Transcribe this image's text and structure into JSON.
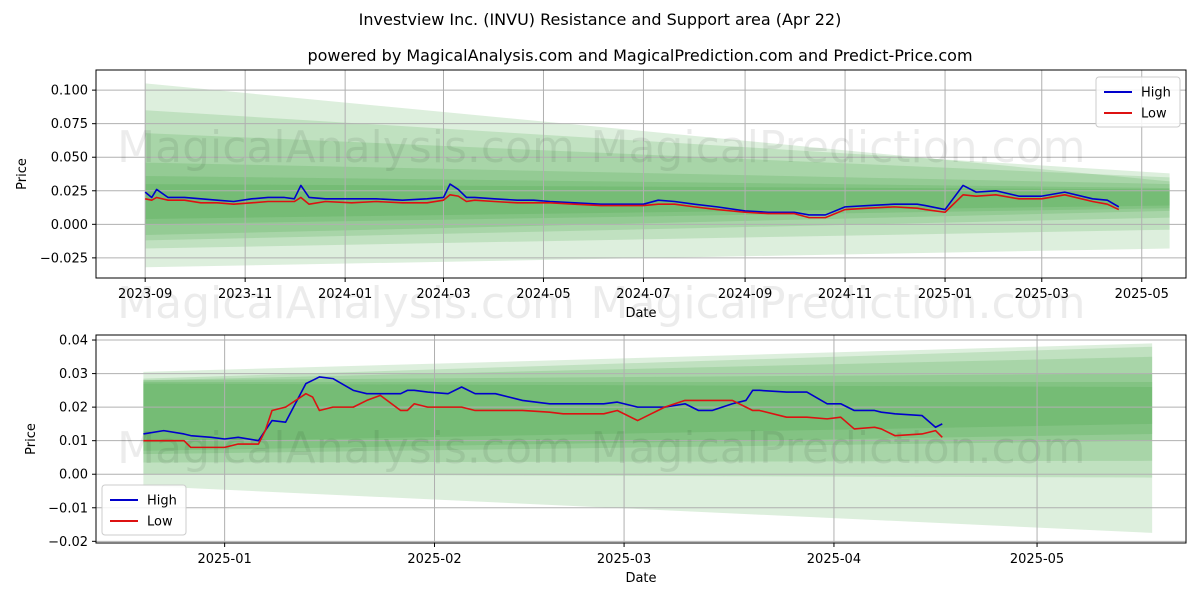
{
  "title": "Investview Inc. (INVU) Resistance and Support area (Apr 22)",
  "subtitle": "powered by MagicalAnalysis.com and MagicalPrediction.com and Predict-Price.com",
  "watermarks": [
    "MagicalAnalysis.com",
    "MagicalPrediction.com"
  ],
  "colors": {
    "high": "#0000cc",
    "low": "#dd1111",
    "band": "#2e9e2e",
    "grid": "#b0b0b0"
  },
  "chart_data": [
    {
      "type": "line",
      "xlabel": "Date",
      "ylabel": "Price",
      "xlim": [
        "2023-08-02",
        "2025-05-28"
      ],
      "ylim": [
        -0.04,
        0.115
      ],
      "grid": true,
      "legend_position": "top-right",
      "x_ticks": [
        "2023-09",
        "2023-11",
        "2024-01",
        "2024-03",
        "2024-05",
        "2024-07",
        "2024-09",
        "2024-11",
        "2025-01",
        "2025-03",
        "2025-05"
      ],
      "y_ticks": [
        "−0.025",
        "0.000",
        "0.025",
        "0.050",
        "0.075",
        "0.100"
      ],
      "series": [
        {
          "name": "High",
          "color": "#0000cc",
          "x": [
            "2023-09-01",
            "2023-09-05",
            "2023-09-08",
            "2023-09-15",
            "2023-09-25",
            "2023-10-05",
            "2023-10-15",
            "2023-10-25",
            "2023-11-05",
            "2023-11-15",
            "2023-11-25",
            "2023-12-01",
            "2023-12-05",
            "2023-12-10",
            "2023-12-20",
            "2024-01-05",
            "2024-01-20",
            "2024-02-05",
            "2024-02-20",
            "2024-03-01",
            "2024-03-05",
            "2024-03-10",
            "2024-03-15",
            "2024-03-20",
            "2024-04-01",
            "2024-04-15",
            "2024-04-25",
            "2024-05-05",
            "2024-05-20",
            "2024-06-05",
            "2024-06-20",
            "2024-07-01",
            "2024-07-10",
            "2024-07-20",
            "2024-08-01",
            "2024-08-15",
            "2024-09-01",
            "2024-09-15",
            "2024-10-01",
            "2024-10-10",
            "2024-10-20",
            "2024-11-01",
            "2024-11-15",
            "2024-12-01",
            "2024-12-15",
            "2024-12-20",
            "2025-01-01",
            "2025-01-12",
            "2025-01-20",
            "2025-02-01",
            "2025-02-15",
            "2025-03-01",
            "2025-03-15",
            "2025-04-01",
            "2025-04-10",
            "2025-04-17"
          ],
          "values": [
            0.024,
            0.02,
            0.026,
            0.02,
            0.02,
            0.019,
            0.018,
            0.017,
            0.019,
            0.02,
            0.02,
            0.019,
            0.029,
            0.02,
            0.019,
            0.019,
            0.019,
            0.018,
            0.019,
            0.02,
            0.03,
            0.026,
            0.02,
            0.02,
            0.019,
            0.018,
            0.018,
            0.017,
            0.016,
            0.015,
            0.015,
            0.015,
            0.018,
            0.017,
            0.015,
            0.013,
            0.01,
            0.009,
            0.009,
            0.007,
            0.007,
            0.013,
            0.014,
            0.015,
            0.015,
            0.014,
            0.011,
            0.029,
            0.024,
            0.025,
            0.021,
            0.021,
            0.024,
            0.019,
            0.018,
            0.013
          ]
        },
        {
          "name": "Low",
          "color": "#dd1111",
          "x": [
            "2023-09-01",
            "2023-09-05",
            "2023-09-08",
            "2023-09-15",
            "2023-09-25",
            "2023-10-05",
            "2023-10-15",
            "2023-10-25",
            "2023-11-05",
            "2023-11-15",
            "2023-11-25",
            "2023-12-01",
            "2023-12-05",
            "2023-12-10",
            "2023-12-20",
            "2024-01-05",
            "2024-01-20",
            "2024-02-05",
            "2024-02-20",
            "2024-03-01",
            "2024-03-05",
            "2024-03-10",
            "2024-03-15",
            "2024-03-20",
            "2024-04-01",
            "2024-04-15",
            "2024-04-25",
            "2024-05-05",
            "2024-05-20",
            "2024-06-05",
            "2024-06-20",
            "2024-07-01",
            "2024-07-10",
            "2024-07-20",
            "2024-08-01",
            "2024-08-15",
            "2024-09-01",
            "2024-09-15",
            "2024-10-01",
            "2024-10-10",
            "2024-10-20",
            "2024-11-01",
            "2024-11-15",
            "2024-12-01",
            "2024-12-15",
            "2024-12-20",
            "2025-01-01",
            "2025-01-12",
            "2025-01-20",
            "2025-02-01",
            "2025-02-15",
            "2025-03-01",
            "2025-03-15",
            "2025-04-01",
            "2025-04-10",
            "2025-04-17"
          ],
          "values": [
            0.019,
            0.018,
            0.02,
            0.018,
            0.018,
            0.016,
            0.016,
            0.015,
            0.016,
            0.017,
            0.017,
            0.017,
            0.02,
            0.015,
            0.017,
            0.016,
            0.017,
            0.016,
            0.016,
            0.018,
            0.022,
            0.021,
            0.017,
            0.018,
            0.017,
            0.016,
            0.016,
            0.016,
            0.015,
            0.014,
            0.014,
            0.014,
            0.015,
            0.015,
            0.013,
            0.011,
            0.009,
            0.008,
            0.008,
            0.005,
            0.005,
            0.011,
            0.012,
            0.013,
            0.012,
            0.011,
            0.009,
            0.022,
            0.021,
            0.022,
            0.019,
            0.019,
            0.022,
            0.017,
            0.015,
            0.011
          ]
        }
      ],
      "bands": [
        {
          "x": [
            "2023-09-01",
            "2025-05-18"
          ],
          "upper": [
            0.105,
            0.032
          ],
          "lower": [
            -0.032,
            -0.018
          ]
        },
        {
          "x": [
            "2023-09-01",
            "2025-05-18"
          ],
          "upper": [
            0.085,
            0.038
          ],
          "lower": [
            -0.018,
            -0.004
          ]
        },
        {
          "x": [
            "2023-09-01",
            "2025-05-18"
          ],
          "upper": [
            0.068,
            0.035
          ],
          "lower": [
            -0.012,
            0.005
          ]
        },
        {
          "x": [
            "2023-09-01",
            "2025-05-18"
          ],
          "upper": [
            0.046,
            0.03
          ],
          "lower": [
            -0.008,
            0.01
          ]
        },
        {
          "x": [
            "2023-09-01",
            "2025-05-18"
          ],
          "upper": [
            0.036,
            0.027
          ],
          "lower": [
            0.0,
            0.012
          ]
        },
        {
          "x": [
            "2023-09-01",
            "2025-05-18"
          ],
          "upper": [
            0.03,
            0.026
          ],
          "lower": [
            0.004,
            0.014
          ]
        }
      ]
    },
    {
      "type": "line",
      "xlabel": "Date",
      "ylabel": "Price",
      "xlim": [
        "2024-12-13",
        "2025-05-23"
      ],
      "ylim": [
        -0.0205,
        0.0415
      ],
      "grid": true,
      "legend_position": "bottom-left",
      "x_ticks": [
        "2025-01",
        "2025-02",
        "2025-03",
        "2025-04",
        "2025-05"
      ],
      "y_ticks": [
        "−0.02",
        "−0.01",
        "0.00",
        "0.01",
        "0.02",
        "0.03",
        "0.04"
      ],
      "series": [
        {
          "name": "High",
          "color": "#0000cc",
          "x": [
            "2024-12-20",
            "2024-12-23",
            "2024-12-26",
            "2024-12-27",
            "2024-12-30",
            "2025-01-01",
            "2025-01-03",
            "2025-01-06",
            "2025-01-07",
            "2025-01-08",
            "2025-01-10",
            "2025-01-13",
            "2025-01-14",
            "2025-01-15",
            "2025-01-17",
            "2025-01-20",
            "2025-01-22",
            "2025-01-24",
            "2025-01-27",
            "2025-01-28",
            "2025-01-29",
            "2025-01-31",
            "2025-02-03",
            "2025-02-05",
            "2025-02-07",
            "2025-02-10",
            "2025-02-14",
            "2025-02-18",
            "2025-02-20",
            "2025-02-24",
            "2025-02-26",
            "2025-02-28",
            "2025-03-03",
            "2025-03-05",
            "2025-03-06",
            "2025-03-07",
            "2025-03-10",
            "2025-03-12",
            "2025-03-14",
            "2025-03-17",
            "2025-03-19",
            "2025-03-20",
            "2025-03-21",
            "2025-03-25",
            "2025-03-26",
            "2025-03-28",
            "2025-03-31",
            "2025-04-02",
            "2025-04-04",
            "2025-04-07",
            "2025-04-08",
            "2025-04-10",
            "2025-04-14",
            "2025-04-16",
            "2025-04-17"
          ],
          "values": [
            0.012,
            0.013,
            0.012,
            0.0115,
            0.011,
            0.0105,
            0.011,
            0.01,
            0.013,
            0.016,
            0.0155,
            0.027,
            0.028,
            0.029,
            0.0285,
            0.025,
            0.024,
            0.024,
            0.024,
            0.025,
            0.025,
            0.0245,
            0.024,
            0.026,
            0.024,
            0.024,
            0.022,
            0.021,
            0.021,
            0.021,
            0.021,
            0.0215,
            0.02,
            0.02,
            0.02,
            0.02,
            0.021,
            0.019,
            0.019,
            0.021,
            0.022,
            0.025,
            0.025,
            0.0245,
            0.0245,
            0.0245,
            0.021,
            0.021,
            0.019,
            0.019,
            0.0185,
            0.018,
            0.0175,
            0.014,
            0.015
          ]
        },
        {
          "name": "Low",
          "color": "#dd1111",
          "x": [
            "2024-12-20",
            "2024-12-23",
            "2024-12-26",
            "2024-12-27",
            "2024-12-30",
            "2025-01-01",
            "2025-01-03",
            "2025-01-06",
            "2025-01-07",
            "2025-01-08",
            "2025-01-10",
            "2025-01-13",
            "2025-01-14",
            "2025-01-15",
            "2025-01-17",
            "2025-01-20",
            "2025-01-22",
            "2025-01-24",
            "2025-01-27",
            "2025-01-28",
            "2025-01-29",
            "2025-01-31",
            "2025-02-03",
            "2025-02-05",
            "2025-02-07",
            "2025-02-10",
            "2025-02-14",
            "2025-02-18",
            "2025-02-20",
            "2025-02-24",
            "2025-02-26",
            "2025-02-28",
            "2025-03-03",
            "2025-03-05",
            "2025-03-06",
            "2025-03-07",
            "2025-03-10",
            "2025-03-12",
            "2025-03-14",
            "2025-03-17",
            "2025-03-19",
            "2025-03-20",
            "2025-03-21",
            "2025-03-25",
            "2025-03-26",
            "2025-03-28",
            "2025-03-31",
            "2025-04-02",
            "2025-04-04",
            "2025-04-07",
            "2025-04-08",
            "2025-04-10",
            "2025-04-14",
            "2025-04-16",
            "2025-04-17"
          ],
          "values": [
            0.01,
            0.01,
            0.01,
            0.008,
            0.008,
            0.008,
            0.009,
            0.009,
            0.013,
            0.019,
            0.02,
            0.024,
            0.023,
            0.019,
            0.02,
            0.02,
            0.022,
            0.0235,
            0.019,
            0.019,
            0.021,
            0.02,
            0.02,
            0.02,
            0.019,
            0.019,
            0.019,
            0.0185,
            0.018,
            0.018,
            0.018,
            0.019,
            0.016,
            0.018,
            0.019,
            0.02,
            0.022,
            0.022,
            0.022,
            0.022,
            0.02,
            0.019,
            0.019,
            0.017,
            0.017,
            0.017,
            0.0165,
            0.017,
            0.0135,
            0.014,
            0.0135,
            0.0115,
            0.012,
            0.013,
            0.011
          ]
        }
      ],
      "bands": [
        {
          "x": [
            "2024-12-20",
            "2025-05-18"
          ],
          "upper": [
            0.0305,
            0.039
          ],
          "lower": [
            -0.0035,
            -0.0175
          ]
        },
        {
          "x": [
            "2024-12-20",
            "2025-05-18"
          ],
          "upper": [
            0.0285,
            0.038
          ],
          "lower": [
            0.0,
            -0.001
          ]
        },
        {
          "x": [
            "2024-12-20",
            "2025-05-18"
          ],
          "upper": [
            0.028,
            0.035
          ],
          "lower": [
            0.0035,
            0.004
          ]
        },
        {
          "x": [
            "2024-12-20",
            "2025-05-18"
          ],
          "upper": [
            0.028,
            0.03
          ],
          "lower": [
            0.006,
            0.01
          ]
        },
        {
          "x": [
            "2024-12-20",
            "2025-05-18"
          ],
          "upper": [
            0.0275,
            0.0275
          ],
          "lower": [
            0.007,
            0.012
          ]
        },
        {
          "x": [
            "2024-12-20",
            "2025-05-18"
          ],
          "upper": [
            0.027,
            0.026
          ],
          "lower": [
            0.0095,
            0.015
          ]
        }
      ]
    }
  ],
  "legend": {
    "high_label": "High",
    "low_label": "Low"
  }
}
